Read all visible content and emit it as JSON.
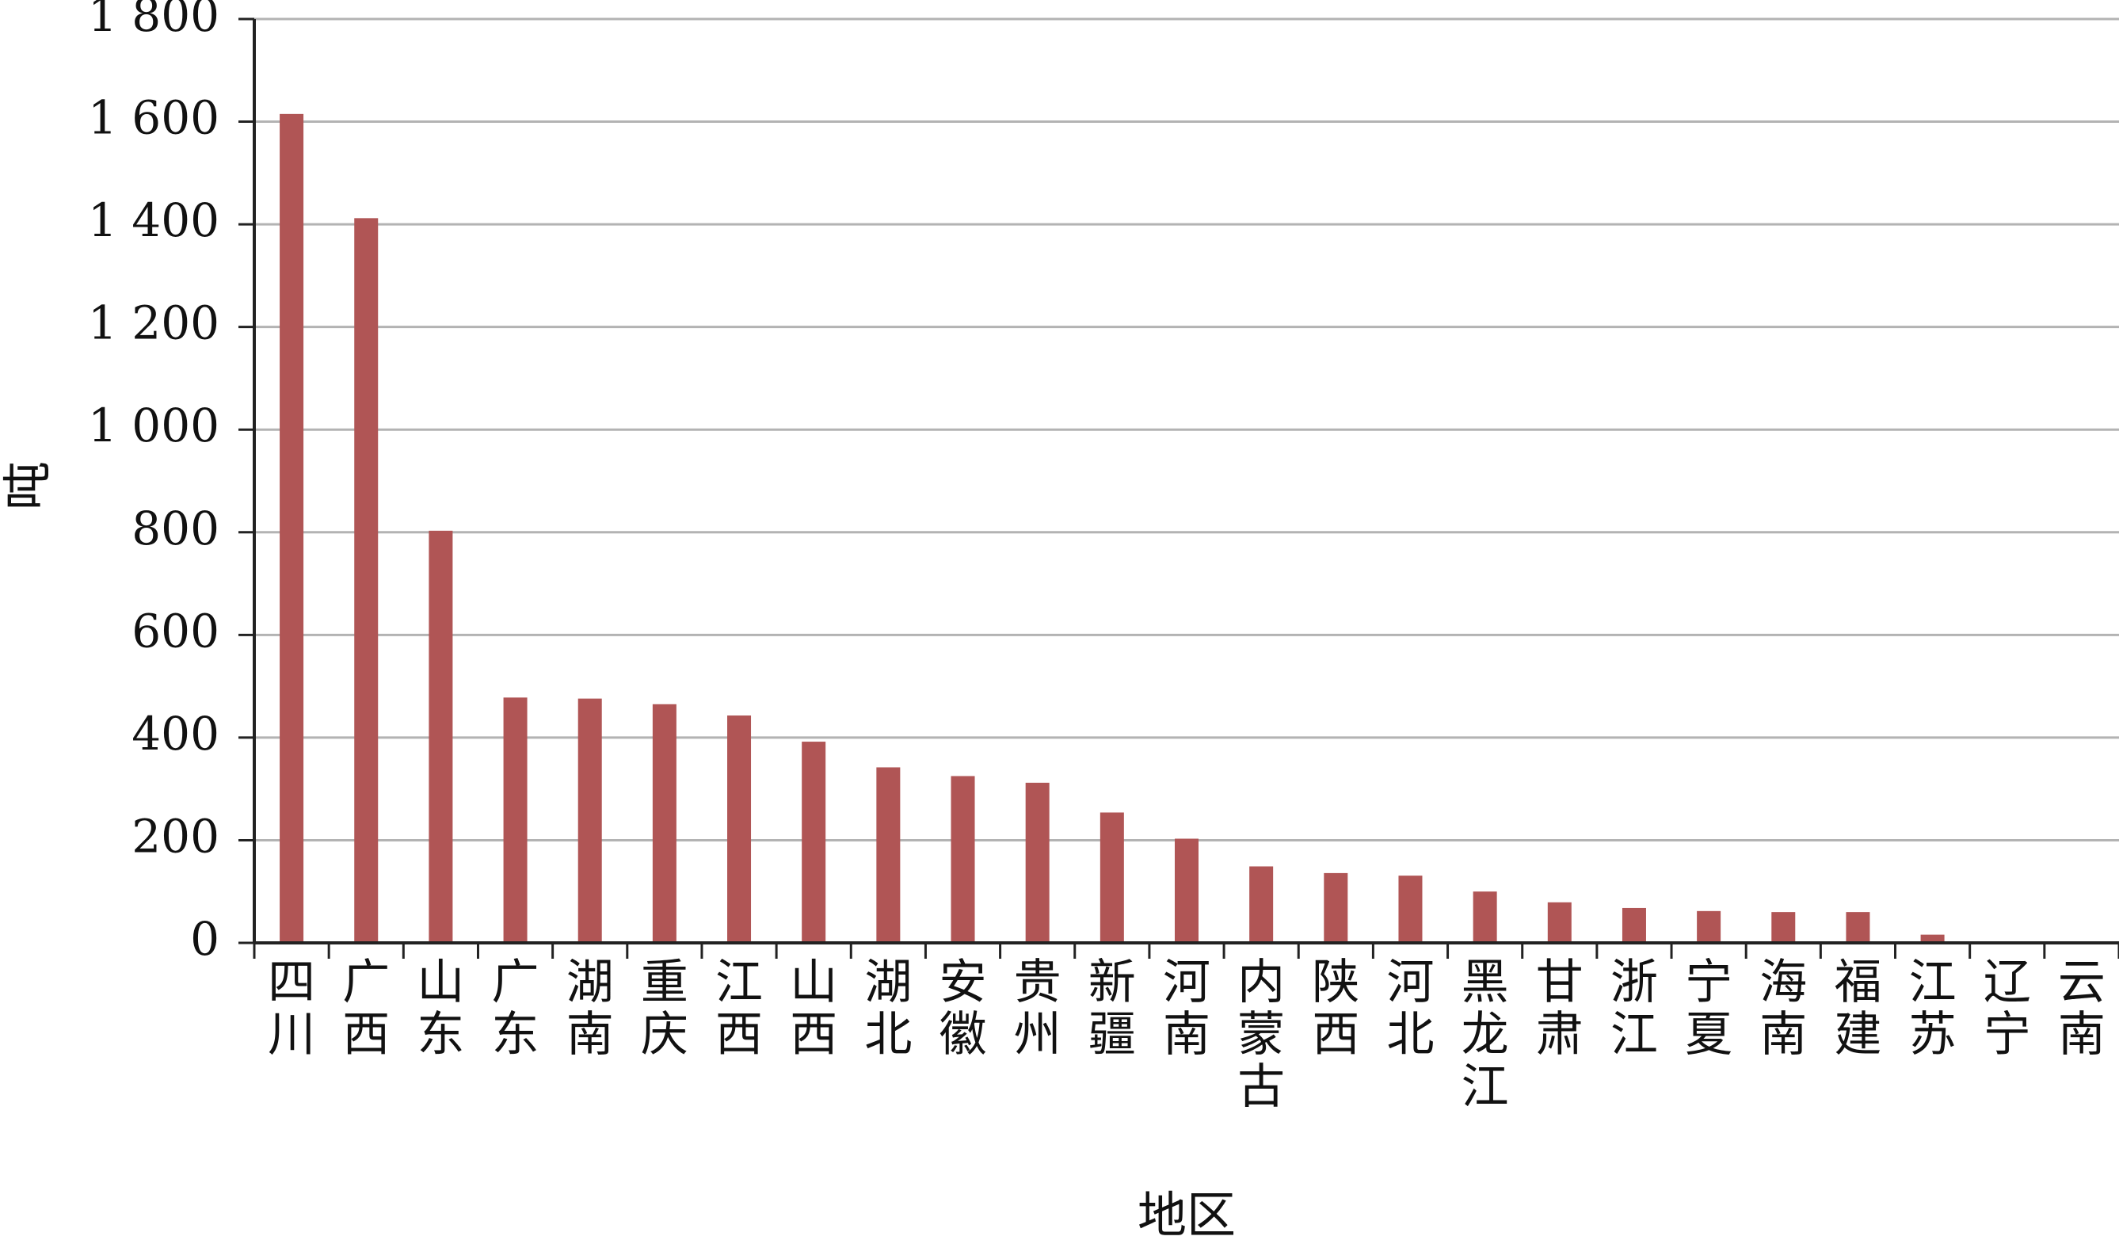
{
  "chart_data": {
    "type": "bar",
    "title": "",
    "xlabel": "地区",
    "ylabel": "吨",
    "ylim": [
      0,
      1800
    ],
    "yticks": [
      0,
      200,
      400,
      600,
      800,
      1000,
      1200,
      1400,
      1600,
      1800
    ],
    "ytick_labels": [
      "0",
      "200",
      "400",
      "600",
      "800",
      "1 000",
      "1 200",
      "1 400",
      "1 600",
      "1 800"
    ],
    "grid": true,
    "legend": "none",
    "bar_color": "#b05555",
    "grid_color": "#b3b3b3",
    "categories": [
      "四川",
      "广西",
      "山东",
      "广东",
      "湖南",
      "重庆",
      "江西",
      "山西",
      "湖北",
      "安徽",
      "贵州",
      "新疆",
      "河南",
      "内蒙古",
      "陕西",
      "河北",
      "黑龙江",
      "甘肃",
      "浙江",
      "宁夏",
      "海南",
      "福建",
      "江苏",
      "辽宁",
      "云南"
    ],
    "values": [
      1615,
      1412,
      803,
      478,
      476,
      465,
      443,
      392,
      342,
      325,
      312,
      254,
      203,
      149,
      136,
      131,
      100,
      79,
      68,
      62,
      60,
      60,
      16,
      0,
      0
    ]
  }
}
